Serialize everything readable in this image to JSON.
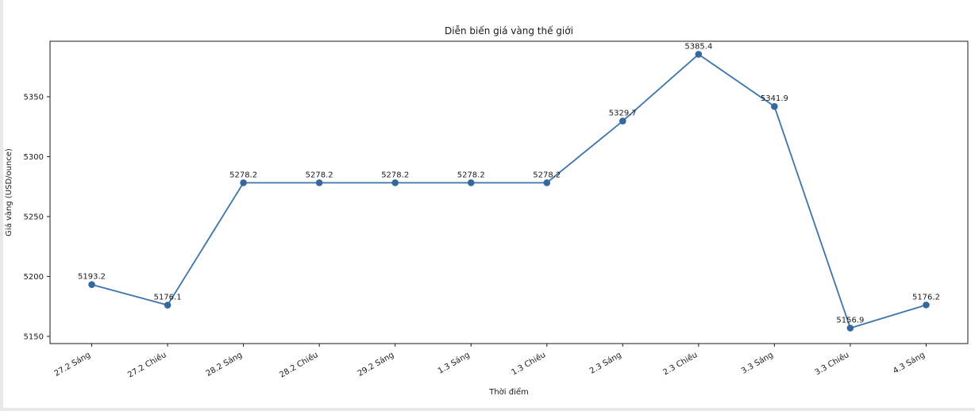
{
  "page": {
    "title": "Diễn biến giá vàng thế giới"
  },
  "chart_data": {
    "type": "line",
    "title": "Diễn biến giá vàng thế giới",
    "xlabel": "Thời điểm",
    "ylabel": "Giá vàng (USD/ounce)",
    "categories": [
      "27.2 Sáng",
      "27.2 Chiều",
      "28.2 Sáng",
      "28.2 Chiều",
      "29.2 Sáng",
      "1.3 Sáng",
      "1.3 Chiều",
      "2.3 Sáng",
      "2.3 Chiều",
      "3.3 Sáng",
      "3.3 Chiều",
      "4.3 Sáng"
    ],
    "values": [
      5193.2,
      5176.1,
      5278.2,
      5278.2,
      5278.2,
      5278.2,
      5278.2,
      5329.7,
      5385.4,
      5341.9,
      5156.9,
      5176.2
    ],
    "point_labels": [
      "5193.2",
      "5176.1",
      "5278.2",
      "5278.2",
      "5278.2",
      "5278.2",
      "5278.2",
      "5329.7",
      "5385.4",
      "5341.9",
      "5156.9",
      "5176.2"
    ],
    "yticks": [
      5150,
      5200,
      5250,
      5300,
      5350
    ],
    "ylim": [
      5144.0,
      5396.3
    ],
    "xlim": [
      -0.55,
      11.55
    ],
    "x_tick_rotation": 30,
    "grid": false,
    "legend_position": "none",
    "line_color": "#3b74ab",
    "marker_color": "#35699e",
    "axis_color": "#1a1a1a",
    "text_color": "#1a1a1a"
  }
}
